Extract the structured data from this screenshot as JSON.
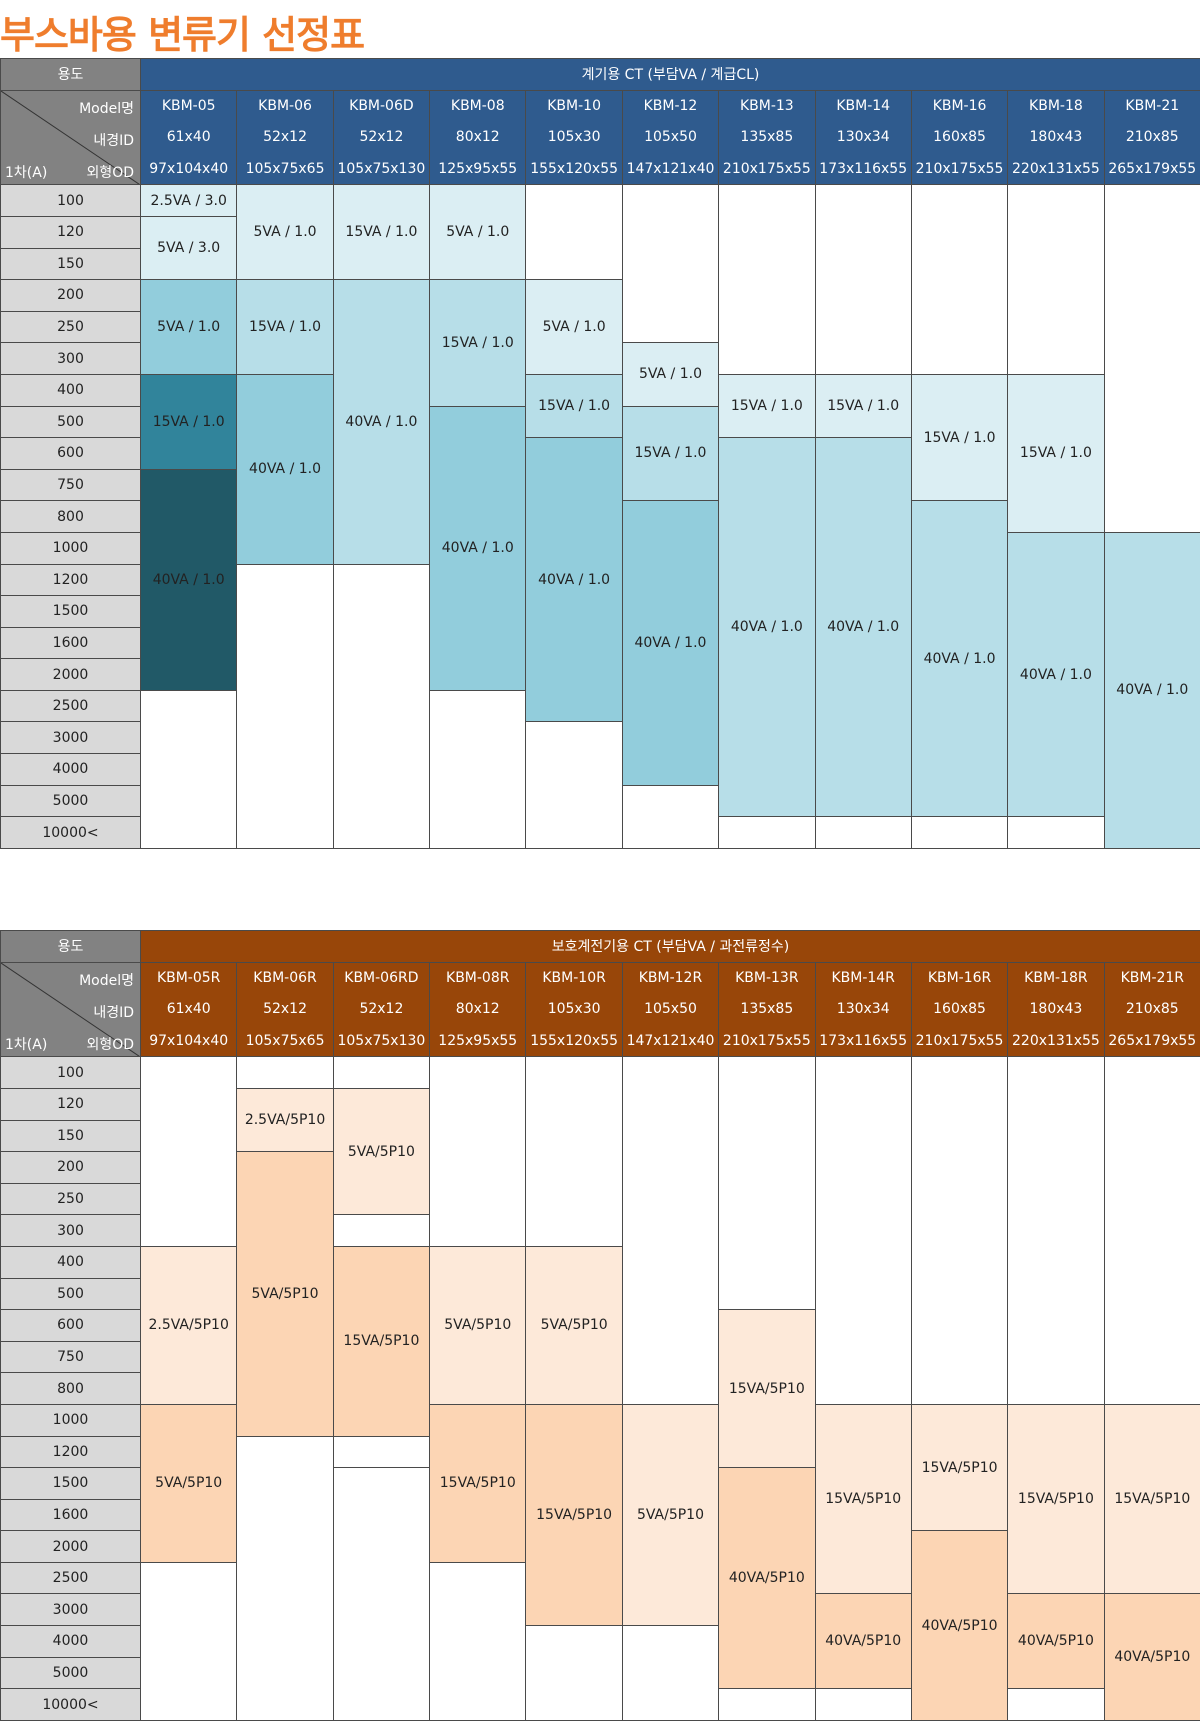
{
  "title": "부스바용 변류기 선정표",
  "metering": {
    "usage_label": "용도",
    "header_title": "계기용 CT (부담VA / 계급CL)",
    "diag": {
      "model": "Model명",
      "id": "내경ID",
      "od": "외형OD",
      "primary": "1차(A)"
    },
    "models": [
      "KBM-05",
      "KBM-06",
      "KBM-06D",
      "KBM-08",
      "KBM-10",
      "KBM-12",
      "KBM-13",
      "KBM-14",
      "KBM-16",
      "KBM-18",
      "KBM-21"
    ],
    "ids": [
      "61x40",
      "52x12",
      "52x12",
      "80x12",
      "105x30",
      "105x50",
      "135x85",
      "130x34",
      "160x85",
      "180x43",
      "210x85"
    ],
    "ods": [
      "97x104x40",
      "105x75x65",
      "105x75x130",
      "125x95x55",
      "155x120x55",
      "147x121x40",
      "210x175x55",
      "173x116x55",
      "210x175x55",
      "220x131x55",
      "265x179x55"
    ],
    "currents": [
      "100",
      "120",
      "150",
      "200",
      "250",
      "300",
      "400",
      "500",
      "600",
      "750",
      "800",
      "1000",
      "1200",
      "1500",
      "1600",
      "2000",
      "2500",
      "3000",
      "4000",
      "5000",
      "10000<"
    ],
    "cells": {
      "kbm05_a": "2.5VA / 3.0",
      "kbm05_b": "5VA / 3.0",
      "kbm05_c": "5VA / 1.0",
      "kbm05_d": "15VA / 1.0",
      "kbm05_e": "40VA / 1.0",
      "kbm06_a": "5VA / 1.0",
      "kbm06_b": "15VA / 1.0",
      "kbm06_c": "40VA / 1.0",
      "kbm06d_a": "15VA / 1.0",
      "kbm06d_b": "40VA / 1.0",
      "kbm08_a": "5VA / 1.0",
      "kbm08_b": "15VA / 1.0",
      "kbm08_c": "40VA / 1.0",
      "kbm10_a": "5VA / 1.0",
      "kbm10_b": "15VA / 1.0",
      "kbm10_c": "40VA / 1.0",
      "kbm12_a": "5VA / 1.0",
      "kbm12_b": "15VA / 1.0",
      "kbm12_c": "40VA / 1.0",
      "kbm13_a": "15VA / 1.0",
      "kbm13_b": "40VA / 1.0",
      "kbm14_a": "15VA / 1.0",
      "kbm14_b": "40VA / 1.0",
      "kbm16_a": "15VA / 1.0",
      "kbm16_b": "40VA / 1.0",
      "kbm18_a": "15VA / 1.0",
      "kbm18_b": "40VA / 1.0",
      "kbm21_a": "40VA / 1.0"
    }
  },
  "protection": {
    "usage_label": "용도",
    "header_title": "보호계전기용 CT  (부담VA / 과전류정수)",
    "diag": {
      "model": "Model명",
      "id": "내경ID",
      "od": "외형OD",
      "primary": "1차(A)"
    },
    "models": [
      "KBM-05R",
      "KBM-06R",
      "KBM-06RD",
      "KBM-08R",
      "KBM-10R",
      "KBM-12R",
      "KBM-13R",
      "KBM-14R",
      "KBM-16R",
      "KBM-18R",
      "KBM-21R"
    ],
    "ids": [
      "61x40",
      "52x12",
      "52x12",
      "80x12",
      "105x30",
      "105x50",
      "135x85",
      "130x34",
      "160x85",
      "180x43",
      "210x85"
    ],
    "ods": [
      "97x104x40",
      "105x75x65",
      "105x75x130",
      "125x95x55",
      "155x120x55",
      "147x121x40",
      "210x175x55",
      "173x116x55",
      "210x175x55",
      "220x131x55",
      "265x179x55"
    ],
    "currents": [
      "100",
      "120",
      "150",
      "200",
      "250",
      "300",
      "400",
      "500",
      "600",
      "750",
      "800",
      "1000",
      "1200",
      "1500",
      "1600",
      "2000",
      "2500",
      "3000",
      "4000",
      "5000",
      "10000<"
    ],
    "cells": {
      "kbm05r_a": "2.5VA/5P10",
      "kbm05r_b": "5VA/5P10",
      "kbm06r_a": "2.5VA/5P10",
      "kbm06r_b": "5VA/5P10",
      "kbm06rd_a": "5VA/5P10",
      "kbm06rd_b": "15VA/5P10",
      "kbm08r_a": "5VA/5P10",
      "kbm08r_b": "15VA/5P10",
      "kbm10r_a": "5VA/5P10",
      "kbm10r_b": "15VA/5P10",
      "kbm12r_a": "5VA/5P10",
      "kbm13r_a": "15VA/5P10",
      "kbm13r_b": "40VA/5P10",
      "kbm14r_a": "15VA/5P10",
      "kbm14r_b": "40VA/5P10",
      "kbm16r_a": "15VA/5P10",
      "kbm16r_b": "40VA/5P10",
      "kbm18r_a": "15VA/5P10",
      "kbm18r_b": "40VA/5P10",
      "kbm21r_a": "15VA/5P10",
      "kbm21r_b": "40VA/5P10"
    }
  },
  "colors": {
    "title": "#ef7d2d",
    "metering_header": "#2f5b8e",
    "protection_header": "#984609",
    "label_header": "#828282",
    "row_label": "#d9d9d9",
    "metering_shades": [
      "#dbeef3",
      "#b7dee8",
      "#92cddc",
      "#31849b",
      "#215967"
    ],
    "protection_shades": [
      "#fde9d9",
      "#fcd5b4"
    ]
  }
}
